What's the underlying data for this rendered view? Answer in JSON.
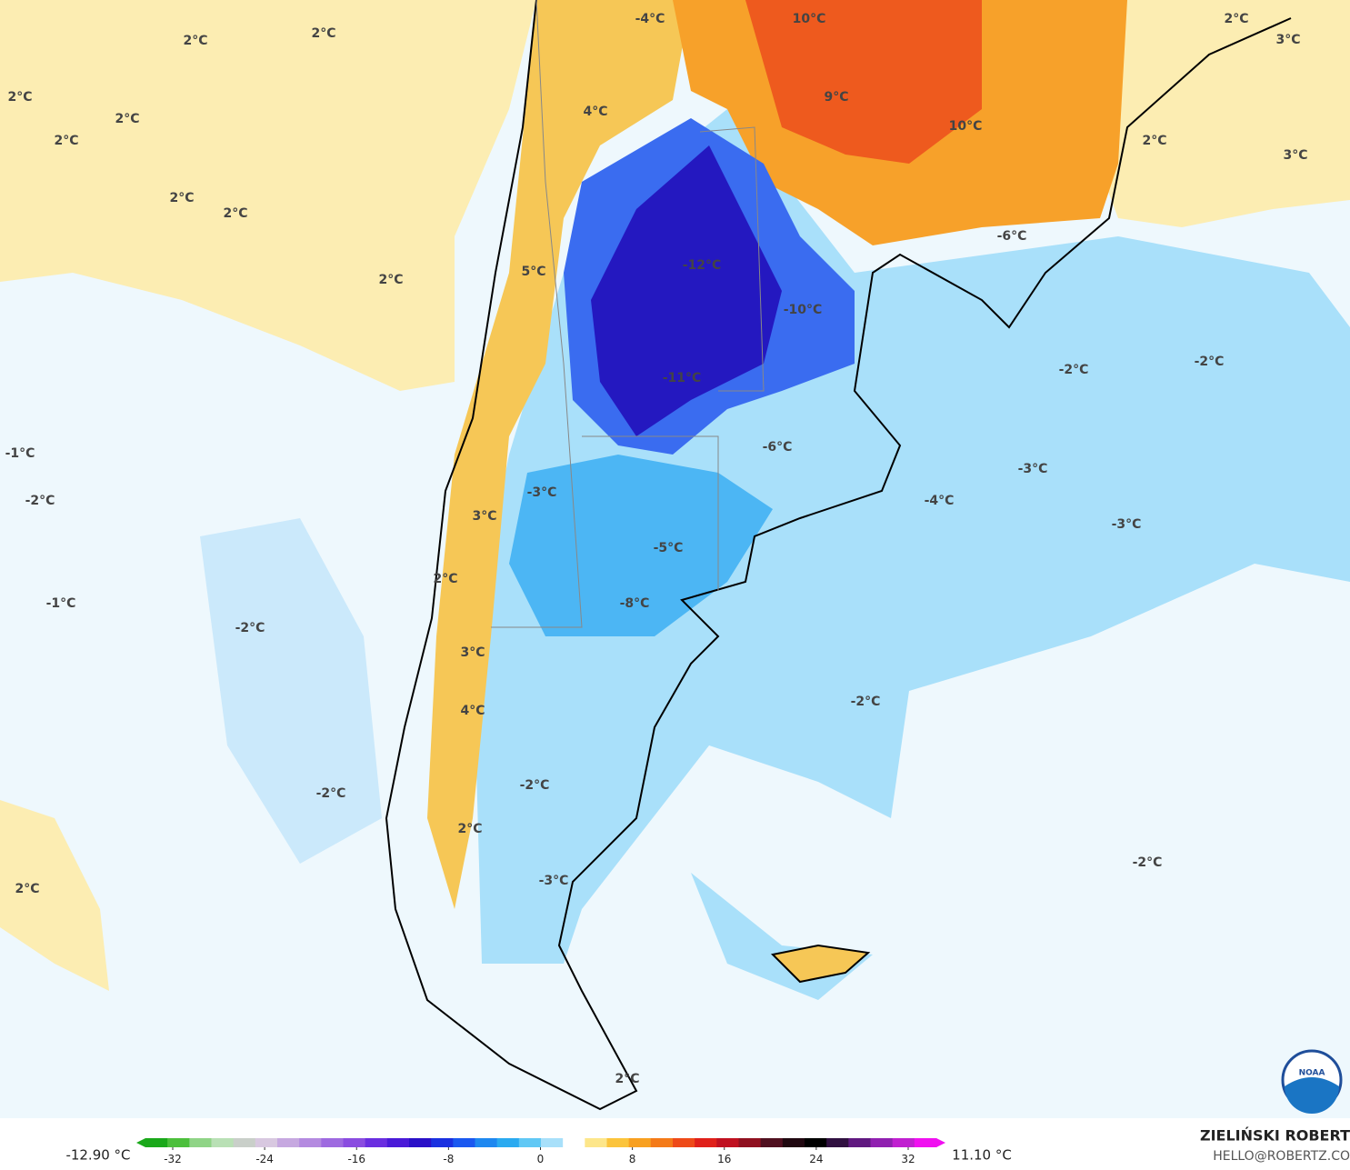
{
  "map": {
    "labels": [
      "2°C",
      "2°C",
      "2°C",
      "2°C",
      "2°C",
      "2°C",
      "2°C",
      "2°C",
      "-4°C",
      "10°C",
      "2°C",
      "3°C",
      "4°C",
      "9°C",
      "10°C",
      "2°C",
      "3°C",
      "-6°C",
      "-12°C",
      "5°C",
      "-10°C",
      "-2°C",
      "-2°C",
      "-11°C",
      "-1°C",
      "-6°C",
      "-3°C",
      "-2°C",
      "-3°C",
      "-4°C",
      "3°C",
      "-3°C",
      "-5°C",
      "2°C",
      "-1°C",
      "-8°C",
      "-2°C",
      "3°C",
      "-2°C",
      "4°C",
      "-2°C",
      "-2°C",
      "2°C",
      "-2°C",
      "-3°C",
      "2°C",
      "2°C"
    ]
  },
  "colorbar": {
    "min_label": "-12.90 °C",
    "max_label": "11.10 °C",
    "range": [
      -32,
      32
    ],
    "ticks": [
      -32,
      -24,
      -16,
      -8,
      0,
      8,
      16,
      24,
      32
    ],
    "colors": [
      "#1aa81a",
      "#4cbf3c",
      "#8fd486",
      "#b9e0b5",
      "#c9cfc9",
      "#d8c8e0",
      "#c6a8e0",
      "#b48ae0",
      "#9e6ae0",
      "#8a4ce0",
      "#6a2ee0",
      "#4a1ad8",
      "#2a10c8",
      "#1a30e0",
      "#1a58f0",
      "#1e88f0",
      "#2aaaf0",
      "#60c8f5",
      "#a8e0fa",
      "#ffffff",
      "#fde68a",
      "#fbc43c",
      "#f8a020",
      "#f47a18",
      "#ee4a18",
      "#e0201a",
      "#c01020",
      "#901020",
      "#501020",
      "#200810",
      "#000000",
      "#301040",
      "#601880",
      "#9020b0",
      "#c020d0",
      "#f010f0"
    ]
  },
  "credit": {
    "name": "ZIELIŃSKI ROBERT",
    "contact": "HELLO@ROBERTZ.CO"
  },
  "logo": "NOAA"
}
